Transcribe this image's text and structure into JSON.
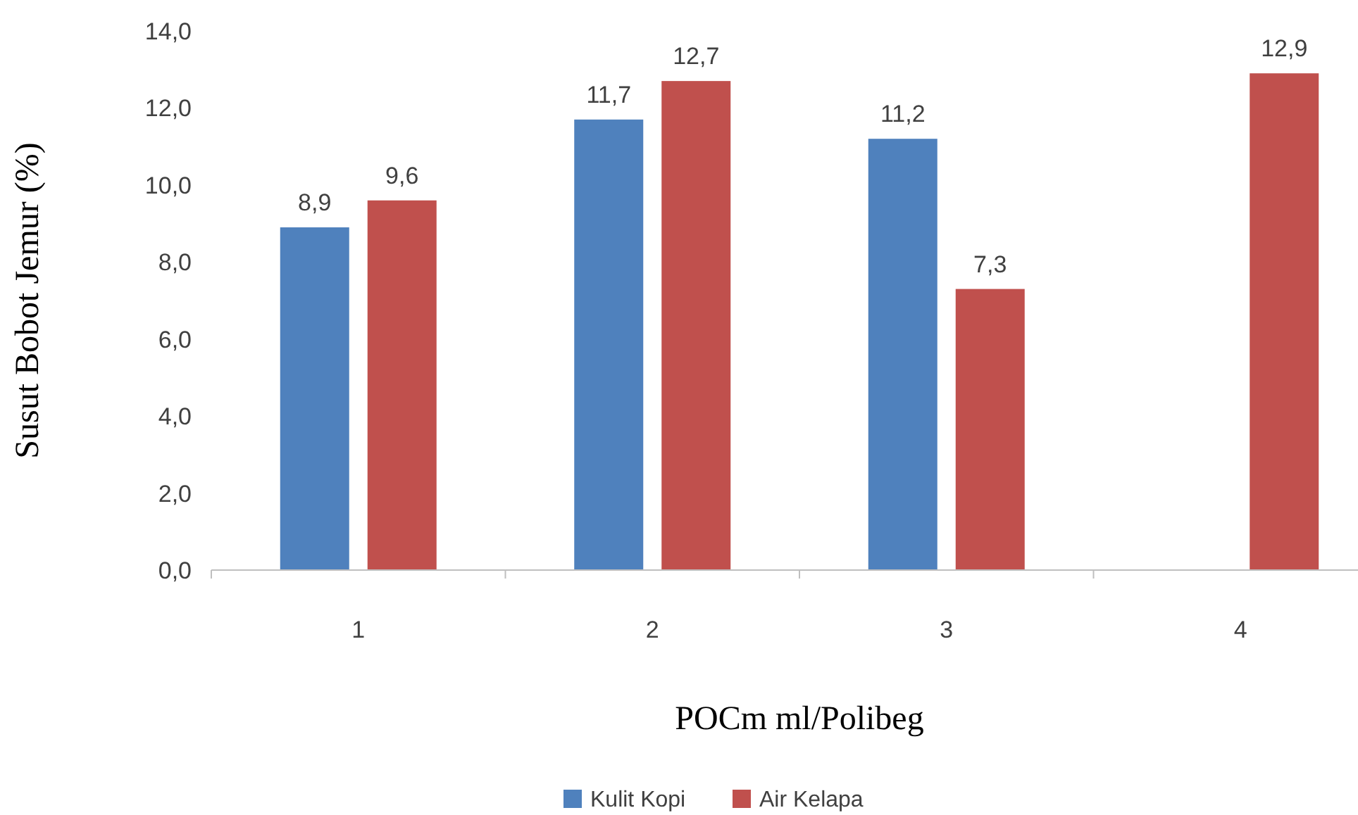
{
  "chart_data": {
    "type": "bar",
    "xlabel": "POCm ml/Polibeg",
    "ylabel": "Susut Bobot Jemur (%)",
    "categories": [
      "1",
      "2",
      "3",
      "4"
    ],
    "series": [
      {
        "name": "Kulit Kopi",
        "color": "#4f81bd",
        "values": [
          8.9,
          11.7,
          11.2,
          null
        ],
        "value_labels": [
          "8,9",
          "11,7",
          "11,2",
          null
        ]
      },
      {
        "name": "Air Kelapa",
        "color": "#c0504d",
        "values": [
          9.6,
          12.7,
          7.3,
          12.9
        ],
        "value_labels": [
          "9,6",
          "12,7",
          "7,3",
          "12,9"
        ]
      }
    ],
    "ylim": [
      0,
      14
    ],
    "yticks": [
      {
        "value": 0,
        "label": "0,0"
      },
      {
        "value": 2,
        "label": "2,0"
      },
      {
        "value": 4,
        "label": "4,0"
      },
      {
        "value": 6,
        "label": "6,0"
      },
      {
        "value": 8,
        "label": "8,0"
      },
      {
        "value": 10,
        "label": "10,0"
      },
      {
        "value": 12,
        "label": "12,0"
      },
      {
        "value": 14,
        "label": "14,0"
      }
    ],
    "grid": false,
    "legend": "bottom"
  }
}
